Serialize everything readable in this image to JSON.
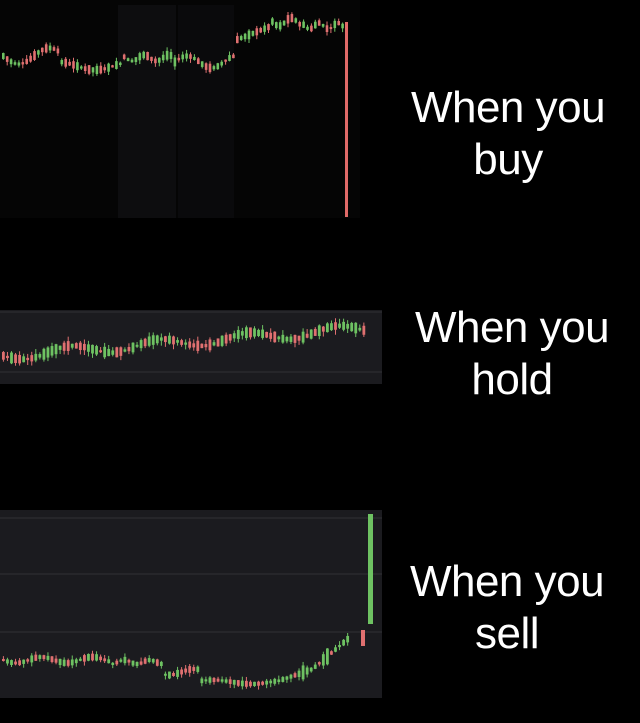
{
  "colors": {
    "background": "#000000",
    "chart_panel": "#1b1b1f",
    "chart_panel_light": "#26262b",
    "gridline": "#303036",
    "up_candle": "#6ec262",
    "down_candle": "#e07070",
    "crash_candle": "#e06a68",
    "caption_text": "#ffffff"
  },
  "panels": [
    {
      "id": "buy",
      "caption_line1": "When you",
      "caption_line2": "buy",
      "chart_trend": "flat then a sharp drop on the last candle",
      "final_candle_direction": "down"
    },
    {
      "id": "hold",
      "caption_line1": "When you",
      "caption_line2": "hold",
      "chart_trend": "slow steady sideways-to-up drift",
      "final_candle_direction": "up"
    },
    {
      "id": "sell",
      "caption_line1": "When you",
      "caption_line2": "sell",
      "chart_trend": "flat then a sharp rise on the last candle",
      "final_candle_direction": "up"
    }
  ]
}
